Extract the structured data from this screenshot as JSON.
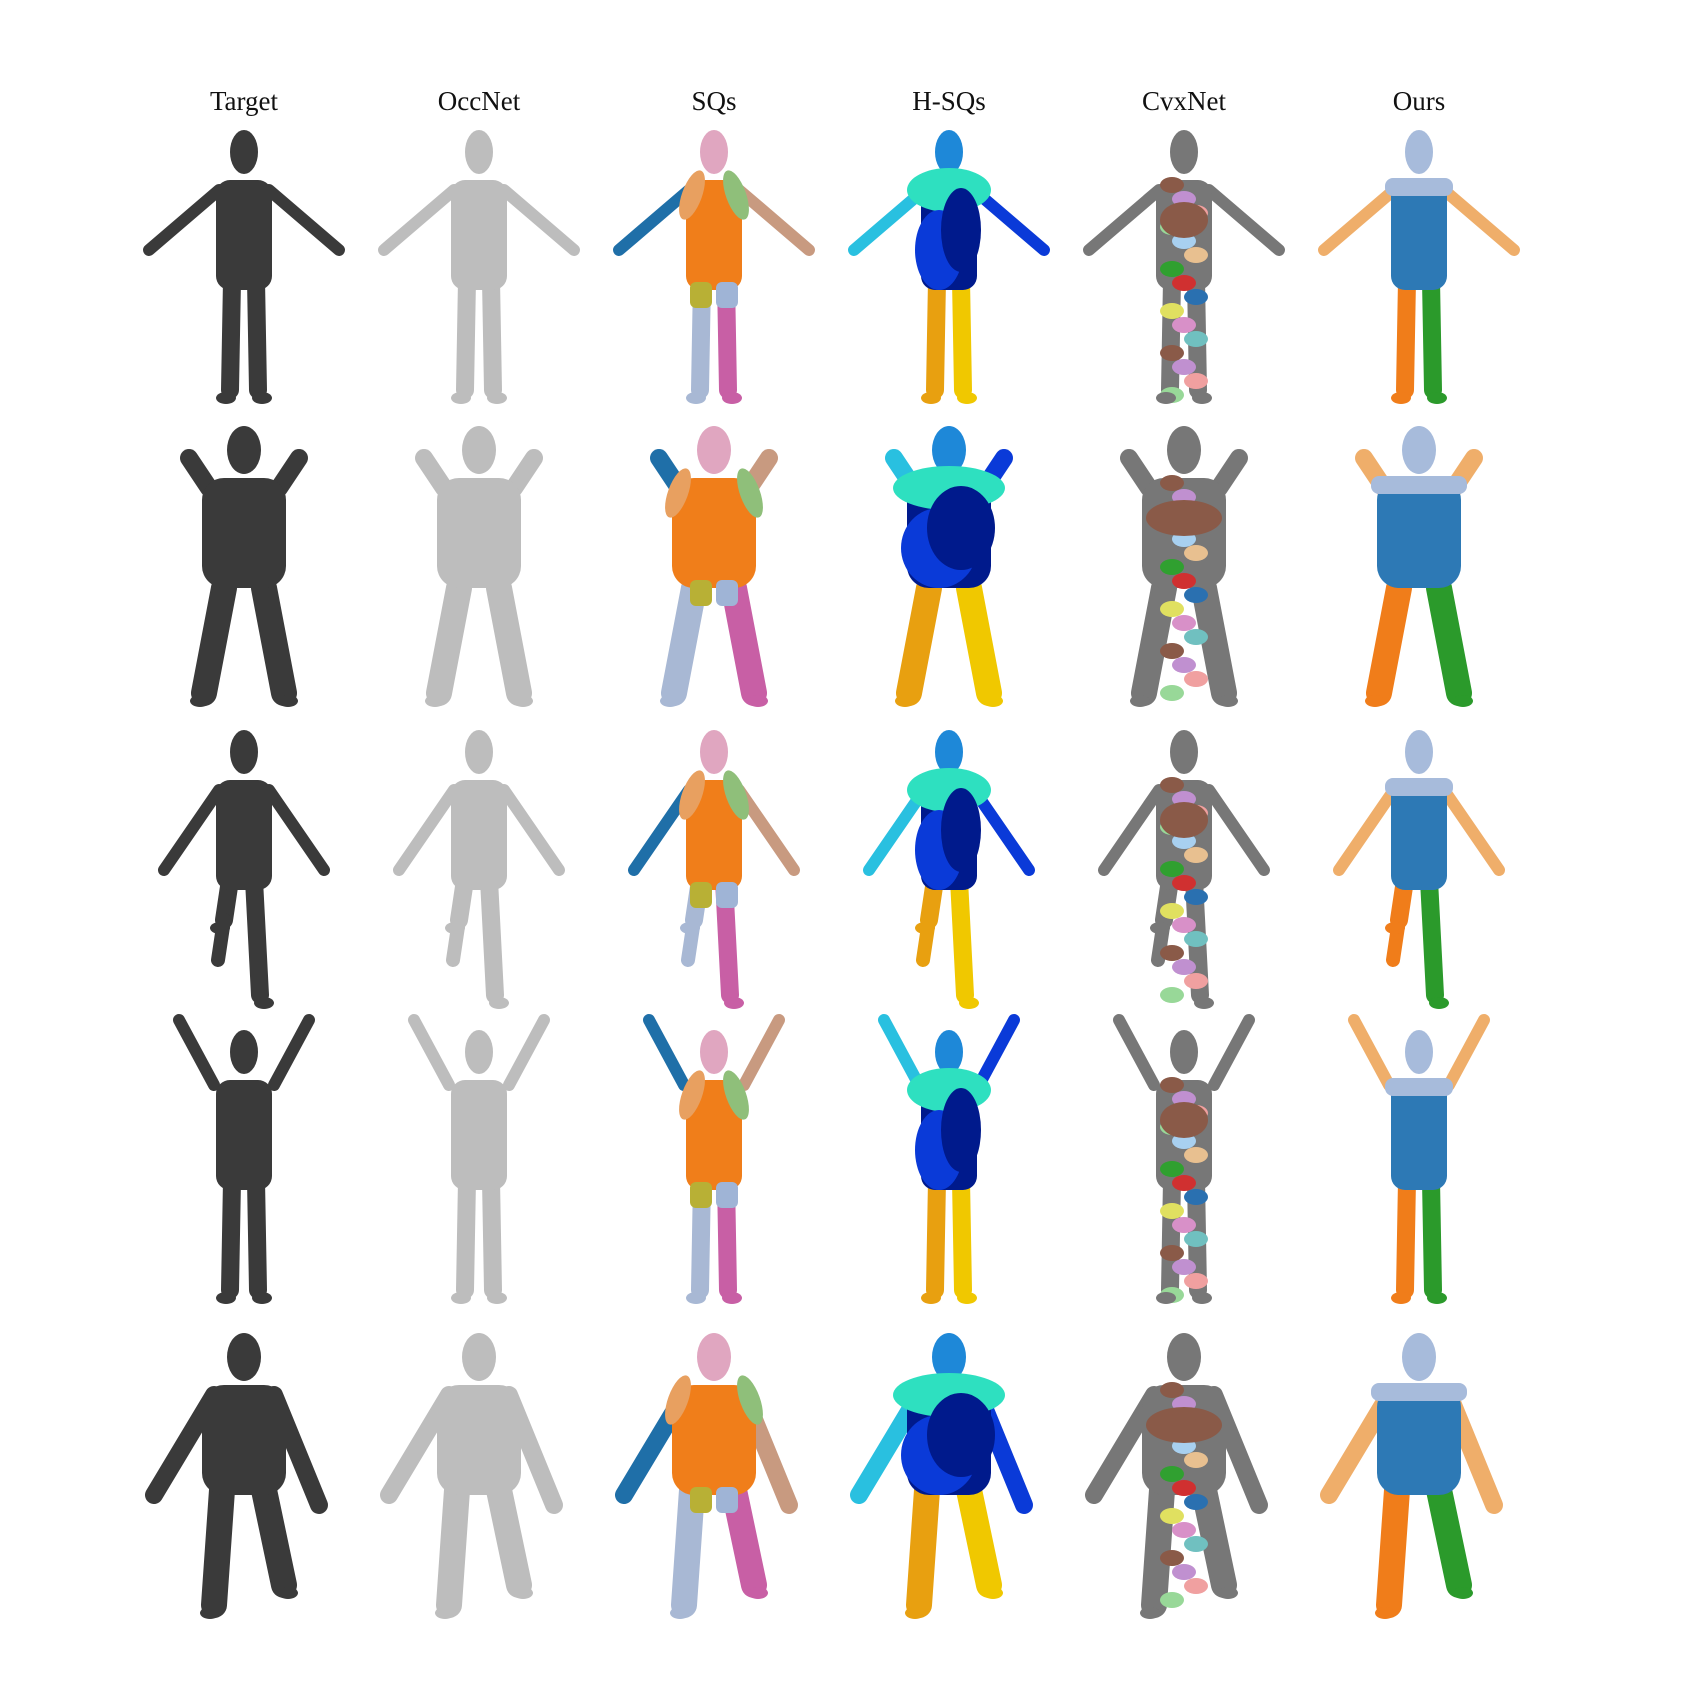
{
  "figure": {
    "columns": [
      {
        "label": "Target",
        "style": "target"
      },
      {
        "label": "OccNet",
        "style": "occnet"
      },
      {
        "label": "SQs",
        "style": "sqs"
      },
      {
        "label": "H-SQs",
        "style": "hsqs"
      },
      {
        "label": "CvxNet",
        "style": "cvxnet"
      },
      {
        "label": "Ours",
        "style": "ours"
      }
    ],
    "rows": [
      {
        "pose": "arms-out",
        "build": "slim"
      },
      {
        "pose": "hands-at-shoulders",
        "build": "heavy"
      },
      {
        "pose": "knee-raised",
        "build": "slim"
      },
      {
        "pose": "arms-raised",
        "build": "slim"
      },
      {
        "pose": "stepping",
        "build": "heavy"
      }
    ],
    "palettes": {
      "target": {
        "all": "#3a3a3a"
      },
      "occnet": {
        "all": "#bdbdbd"
      },
      "sqs": {
        "head": "#e0a6c0",
        "torso": "#f07e1a",
        "armL": "#1f6fa8",
        "armR": "#c89a80",
        "upperArmL": "#e8a060",
        "upperArmR": "#8fbf7a",
        "hips": "#b8b035",
        "thighR": "#9fb4d6",
        "shinL": "#a8b8d4",
        "shinR": "#c85fa5",
        "footL": "#b9b36a",
        "footR": "#e6a06a"
      },
      "hsqs": {
        "head": "#1e88d8",
        "chest": "#2ee0c0",
        "armL": "#29c0e0",
        "torso": "#001a8c",
        "belly": "#0a3ad8",
        "thigh": "#1540e0",
        "shinL": "#e8a010",
        "shinR": "#f0c800",
        "foot": "#f8d800"
      },
      "cvxnet": {
        "a": "#8a5a48",
        "b": "#c090d0",
        "c": "#f0a0a0",
        "d": "#98d898",
        "e": "#a8d0f0",
        "f": "#e8c090",
        "g": "#30a030",
        "h": "#d03030",
        "i": "#2a70b0",
        "j": "#e0e060",
        "k": "#d890c8",
        "l": "#70c0c0"
      },
      "ours": {
        "head": "#a7bbdb",
        "torso": "#2d79b5",
        "arms": "#efae6a",
        "legL": "#f07d1a",
        "legR": "#2b9a2b"
      }
    }
  }
}
